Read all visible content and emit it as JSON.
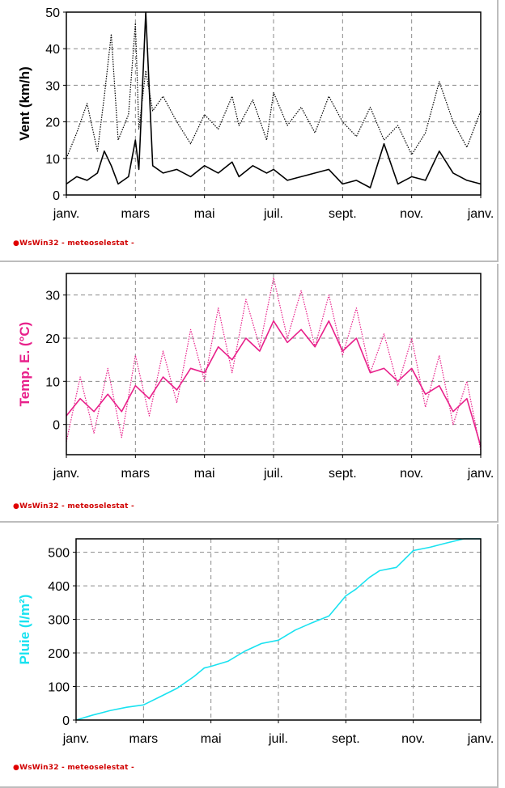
{
  "colors": {
    "wind": "#000000",
    "temp": "#e8208a",
    "rain": "#19e2f0",
    "grid": "#8a8a8a",
    "credit": "#d00000"
  },
  "credit": {
    "brand": "WsWin32",
    "sep1": " - ",
    "station": "meteoselestat",
    "sep2": " -"
  },
  "chart_data": [
    {
      "type": "line",
      "ylabel": "Vent  (km/h)",
      "ylim": [
        0,
        50
      ],
      "yticks": [
        0,
        10,
        20,
        30,
        40,
        50
      ],
      "xlim": [
        0,
        12
      ],
      "xticks": [
        0,
        2,
        4,
        6,
        8,
        10,
        12
      ],
      "xtick_labels": [
        "janv.",
        "mars",
        "mai",
        "juil.",
        "sept.",
        "nov.",
        "janv."
      ],
      "grid": true,
      "series": [
        {
          "style": "dotted",
          "x": [
            0,
            0.3,
            0.6,
            0.9,
            1.1,
            1.3,
            1.5,
            1.8,
            2.0,
            2.1,
            2.3,
            2.5,
            2.8,
            3.2,
            3.6,
            4.0,
            4.4,
            4.8,
            5.0,
            5.4,
            5.8,
            6.0,
            6.4,
            6.8,
            7.2,
            7.6,
            8.0,
            8.4,
            8.8,
            9.2,
            9.6,
            10.0,
            10.4,
            10.8,
            11.2,
            11.6,
            12.0
          ],
          "y": [
            10,
            17,
            25,
            12,
            27,
            44,
            15,
            22,
            47,
            18,
            34,
            23,
            27,
            20,
            14,
            22,
            18,
            27,
            19,
            26,
            15,
            28,
            19,
            24,
            17,
            27,
            20,
            16,
            24,
            15,
            19,
            11,
            17,
            31,
            20,
            13,
            23
          ]
        },
        {
          "style": "solid",
          "x": [
            0,
            0.3,
            0.6,
            0.9,
            1.1,
            1.3,
            1.5,
            1.8,
            2.0,
            2.1,
            2.3,
            2.5,
            2.8,
            3.2,
            3.6,
            4.0,
            4.4,
            4.8,
            5.0,
            5.4,
            5.8,
            6.0,
            6.4,
            6.8,
            7.2,
            7.6,
            8.0,
            8.4,
            8.8,
            9.2,
            9.6,
            10.0,
            10.4,
            10.8,
            11.2,
            11.6,
            12.0
          ],
          "y": [
            3,
            5,
            4,
            6,
            12,
            8,
            3,
            5,
            15,
            7,
            50,
            8,
            6,
            7,
            5,
            8,
            6,
            9,
            5,
            8,
            6,
            7,
            4,
            5,
            6,
            7,
            3,
            4,
            2,
            14,
            3,
            5,
            4,
            12,
            6,
            4,
            3
          ]
        }
      ]
    },
    {
      "type": "line",
      "ylabel": "Temp. E.  (°C)",
      "ylim": [
        -7,
        35
      ],
      "yticks": [
        0,
        10,
        20,
        30
      ],
      "xlim": [
        0,
        12
      ],
      "xticks": [
        0,
        2,
        4,
        6,
        8,
        10,
        12
      ],
      "xtick_labels": [
        "janv.",
        "mars",
        "mai",
        "juil.",
        "sept.",
        "nov.",
        "janv."
      ],
      "grid": true,
      "series": [
        {
          "style": "dotted",
          "x": [
            0,
            0.4,
            0.8,
            1.2,
            1.6,
            2.0,
            2.4,
            2.8,
            3.2,
            3.6,
            4.0,
            4.4,
            4.8,
            5.2,
            5.6,
            6.0,
            6.4,
            6.8,
            7.2,
            7.6,
            8.0,
            8.4,
            8.8,
            9.2,
            9.6,
            10.0,
            10.4,
            10.8,
            11.2,
            11.6,
            12.0
          ],
          "y": [
            -4,
            11,
            -2,
            13,
            -3,
            16,
            2,
            17,
            5,
            22,
            10,
            27,
            12,
            29,
            18,
            34,
            20,
            31,
            18,
            30,
            16,
            27,
            12,
            21,
            9,
            20,
            4,
            16,
            0,
            10,
            -6
          ]
        },
        {
          "style": "solid",
          "x": [
            0,
            0.4,
            0.8,
            1.2,
            1.6,
            2.0,
            2.4,
            2.8,
            3.2,
            3.6,
            4.0,
            4.4,
            4.8,
            5.2,
            5.6,
            6.0,
            6.4,
            6.8,
            7.2,
            7.6,
            8.0,
            8.4,
            8.8,
            9.2,
            9.6,
            10.0,
            10.4,
            10.8,
            11.2,
            11.6,
            12.0
          ],
          "y": [
            2,
            6,
            3,
            7,
            3,
            9,
            6,
            11,
            8,
            13,
            12,
            18,
            15,
            20,
            17,
            24,
            19,
            22,
            18,
            24,
            17,
            20,
            12,
            13,
            10,
            13,
            7,
            9,
            3,
            6,
            -5
          ]
        }
      ]
    },
    {
      "type": "line",
      "ylabel": "Pluie  (l/m²)",
      "ylim": [
        0,
        540
      ],
      "yticks": [
        0,
        100,
        200,
        300,
        400,
        500
      ],
      "xlim": [
        0,
        12
      ],
      "xticks": [
        0,
        2,
        4,
        6,
        8,
        10,
        12
      ],
      "xtick_labels": [
        "janv.",
        "mars",
        "mai",
        "juil.",
        "sept.",
        "nov.",
        "janv."
      ],
      "grid": true,
      "series": [
        {
          "style": "solid",
          "x": [
            0,
            0.5,
            1.0,
            1.5,
            2.0,
            2.5,
            3.0,
            3.5,
            3.8,
            4.0,
            4.5,
            5.0,
            5.5,
            6.0,
            6.5,
            7.0,
            7.5,
            8.0,
            8.3,
            8.7,
            9.0,
            9.5,
            10.0,
            10.5,
            11.0,
            11.5,
            12.0
          ],
          "y": [
            0,
            15,
            28,
            38,
            45,
            70,
            95,
            130,
            155,
            160,
            175,
            205,
            228,
            238,
            268,
            290,
            310,
            370,
            390,
            425,
            445,
            455,
            505,
            515,
            528,
            540,
            540
          ]
        }
      ]
    }
  ]
}
